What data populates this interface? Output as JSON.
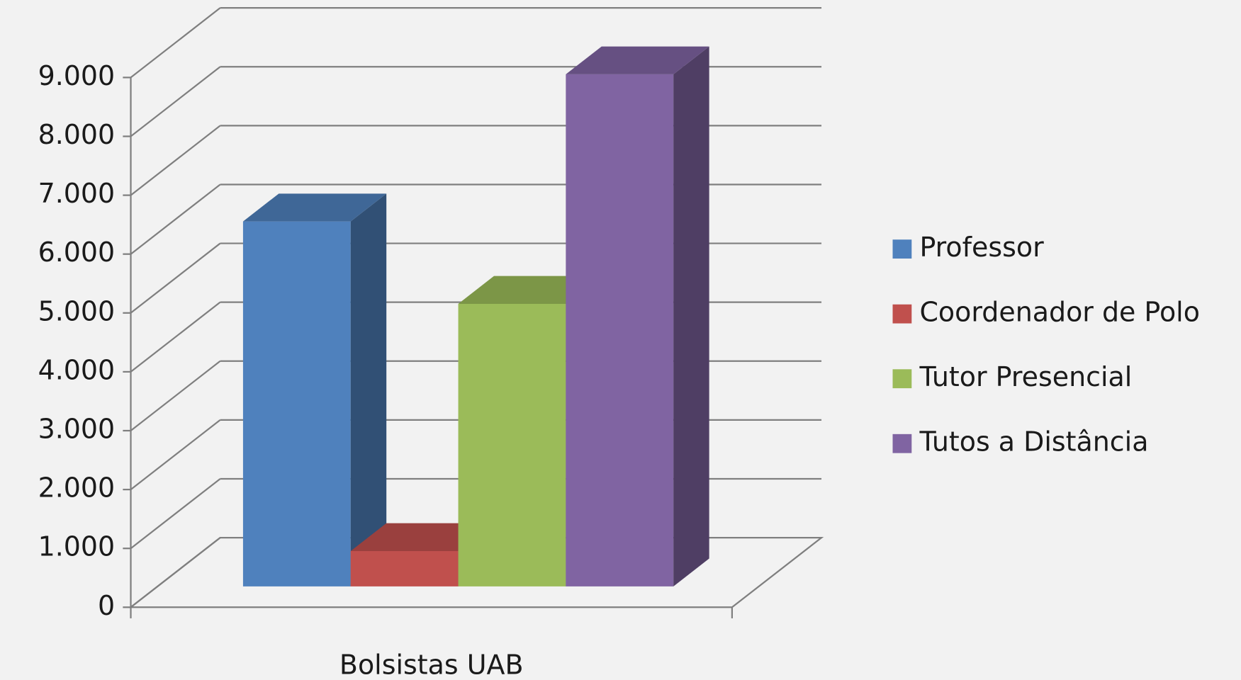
{
  "chart_data": {
    "type": "bar",
    "categories": [
      "Bolsistas UAB"
    ],
    "series": [
      {
        "name": "Professor",
        "color": "#4f81bd",
        "values": [
          6200
        ]
      },
      {
        "name": "Coordenador de Polo",
        "color": "#c0504d",
        "values": [
          600
        ]
      },
      {
        "name": "Tutor Presencial",
        "color": "#9bbb59",
        "values": [
          4800
        ]
      },
      {
        "name": "Tutos a Distância",
        "color": "#8064a2",
        "values": [
          8700
        ]
      }
    ],
    "ylim": [
      0,
      9000
    ],
    "yticks": [
      0,
      {
        "value": 1000,
        "label": "1.000"
      },
      {
        "value": 2000,
        "label": "2.000"
      },
      {
        "value": 3000,
        "label": "3.000"
      },
      {
        "value": 4000,
        "label": "4.000"
      },
      {
        "value": 5000,
        "label": "5.000"
      },
      {
        "value": 6000,
        "label": "6.000"
      },
      {
        "value": 7000,
        "label": "7.000"
      },
      {
        "value": 8000,
        "label": "8.000"
      },
      {
        "value": 9000,
        "label": "9.000"
      }
    ],
    "grid": true,
    "legend": "right"
  }
}
